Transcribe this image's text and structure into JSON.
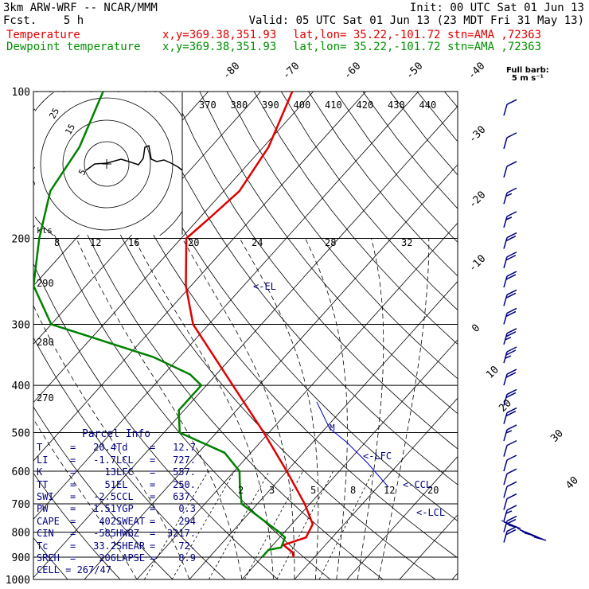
{
  "header": {
    "model": "3km ARW-WRF -- NCAR/MMM",
    "init": "Init: 00 UTC Sat 01 Jun 13",
    "fcst_label": "Fcst.",
    "fcst_value": "5 h",
    "valid": "Valid: 05 UTC Sat 01 Jun 13 (23 MDT Fri 31 May 13)",
    "temp_line": {
      "label": "Temperature",
      "xy": "x,y=369.38,351.93",
      "latlon": "lat,lon= 35.22,-101.72",
      "stn": "stn=AMA ,72363"
    },
    "dew_line": {
      "label": "Dewpoint temperature",
      "xy": "x,y=369.38,351.93",
      "latlon": "lat,lon= 35.22,-101.72",
      "stn": "stn=AMA ,72363"
    }
  },
  "wind_legend": {
    "title": "Full barb:",
    "value": "5 m s⁻¹"
  },
  "parcel": {
    "title": "Parcel Info",
    "rows": [
      [
        {
          "k": "T",
          "v": "20.4"
        },
        {
          "k": "Td",
          "v": "12.7"
        }
      ],
      [
        {
          "k": "LI",
          "v": "-1.7"
        },
        {
          "k": "LCL",
          "v": "727."
        }
      ],
      [
        {
          "k": "K",
          "v": "13"
        },
        {
          "k": "LFC",
          "v": "557."
        }
      ],
      [
        {
          "k": "TT",
          "v": "51"
        },
        {
          "k": "EL",
          "v": "250."
        }
      ],
      [
        {
          "k": "SWI",
          "v": "-2.5"
        },
        {
          "k": "CCL",
          "v": "637."
        }
      ],
      [
        {
          "k": "PW",
          "v": "1.51"
        },
        {
          "k": "YGP",
          "v": "0.3"
        }
      ],
      [
        {
          "k": "CAPE",
          "v": "402"
        },
        {
          "k": "SWEAT",
          "v": "294"
        }
      ],
      [
        {
          "k": "CIN",
          "v": "-585"
        },
        {
          "k": "HWBZ",
          "v": "3217."
        }
      ],
      [
        {
          "k": "Tc",
          "v": "33.2"
        },
        {
          "k": "SHEAR",
          "v": "72."
        }
      ],
      [
        {
          "k": "SREH",
          "v": "206"
        },
        {
          "k": "LAPSE",
          "v": "8.9"
        }
      ]
    ],
    "cell": "CELL = 267/47"
  },
  "chart_data": {
    "type": "line",
    "subtype": "skew-T log-P",
    "pressure_levels_hPa": [
      100,
      200,
      300,
      400,
      500,
      600,
      700,
      800,
      900,
      1000
    ],
    "isotherm_labels_C": [
      -80,
      -70,
      -60,
      -50,
      -40,
      -30,
      -20,
      -10,
      0,
      10,
      20,
      30,
      40
    ],
    "theta_labels_K": [
      370,
      380,
      390,
      400,
      410,
      420,
      430,
      440
    ],
    "theta_low_labels_K": [
      290,
      280,
      270
    ],
    "mixing_ratio_labels": [
      "2",
      "3",
      "5",
      "8",
      "12",
      "20"
    ],
    "hodograph": {
      "speed_unit_label": "kts",
      "ring_labels": [
        "5",
        "15",
        "25"
      ],
      "axis_labels": [
        "8",
        "12",
        "16",
        "20",
        "24",
        "28",
        "32"
      ],
      "trace_uv": [
        [
          5,
          2
        ],
        [
          14,
          -1
        ],
        [
          23,
          -1
        ],
        [
          27,
          -2
        ],
        [
          28,
          -4
        ],
        [
          30,
          2
        ],
        [
          32,
          5
        ],
        [
          36,
          -2
        ],
        [
          40,
          -3
        ],
        [
          46,
          -8
        ]
      ]
    },
    "levels": [
      {
        "name": "EL",
        "label": "<-EL",
        "p": 250
      },
      {
        "name": "LFC",
        "label": "<-LFC",
        "p": 557
      },
      {
        "name": "CCL",
        "label": "<-CCL",
        "p": 637
      },
      {
        "name": "LCL",
        "label": "<-LCL",
        "p": 727
      }
    ],
    "series": [
      {
        "name": "Temperature",
        "color": "#e00000",
        "points": [
          [
            100,
            -64
          ],
          [
            130,
            -59
          ],
          [
            160,
            -57
          ],
          [
            180,
            -58
          ],
          [
            200,
            -59
          ],
          [
            250,
            -51
          ],
          [
            300,
            -43
          ],
          [
            400,
            -25
          ],
          [
            500,
            -11
          ],
          [
            600,
            0
          ],
          [
            700,
            9
          ],
          [
            770,
            14
          ],
          [
            820,
            15
          ],
          [
            850,
            12
          ],
          [
            880,
            15
          ],
          [
            900,
            16
          ]
        ]
      },
      {
        "name": "Dewpoint temperature",
        "color": "#008000",
        "points": [
          [
            100,
            -100
          ],
          [
            130,
            -95
          ],
          [
            160,
            -93
          ],
          [
            200,
            -87
          ],
          [
            250,
            -80
          ],
          [
            300,
            -70
          ],
          [
            350,
            -45
          ],
          [
            380,
            -35
          ],
          [
            400,
            -31
          ],
          [
            450,
            -31
          ],
          [
            500,
            -27
          ],
          [
            550,
            -15
          ],
          [
            600,
            -9
          ],
          [
            650,
            -6
          ],
          [
            700,
            -3
          ],
          [
            800,
            9
          ],
          [
            820,
            11
          ],
          [
            860,
            12
          ],
          [
            870,
            10
          ],
          [
            900,
            10
          ]
        ]
      }
    ],
    "wind_barbs": [
      {
        "p": 112,
        "spd": 10
      },
      {
        "p": 131,
        "spd": 10
      },
      {
        "p": 150,
        "spd": 10
      },
      {
        "p": 170,
        "spd": 15
      },
      {
        "p": 190,
        "spd": 15
      },
      {
        "p": 210,
        "spd": 20
      },
      {
        "p": 230,
        "spd": 20
      },
      {
        "p": 252,
        "spd": 20
      },
      {
        "p": 275,
        "spd": 20
      },
      {
        "p": 300,
        "spd": 20
      },
      {
        "p": 330,
        "spd": 25
      },
      {
        "p": 360,
        "spd": 25
      },
      {
        "p": 400,
        "spd": 20
      },
      {
        "p": 440,
        "spd": 20
      },
      {
        "p": 480,
        "spd": 20
      },
      {
        "p": 520,
        "spd": 15
      },
      {
        "p": 560,
        "spd": 10
      },
      {
        "p": 600,
        "spd": 10
      },
      {
        "p": 640,
        "spd": 10
      },
      {
        "p": 680,
        "spd": 10
      },
      {
        "p": 720,
        "spd": 10
      },
      {
        "p": 760,
        "spd": 15
      },
      {
        "p": 800,
        "spd": 20
      },
      {
        "p": 840,
        "spd": 20
      }
    ]
  }
}
